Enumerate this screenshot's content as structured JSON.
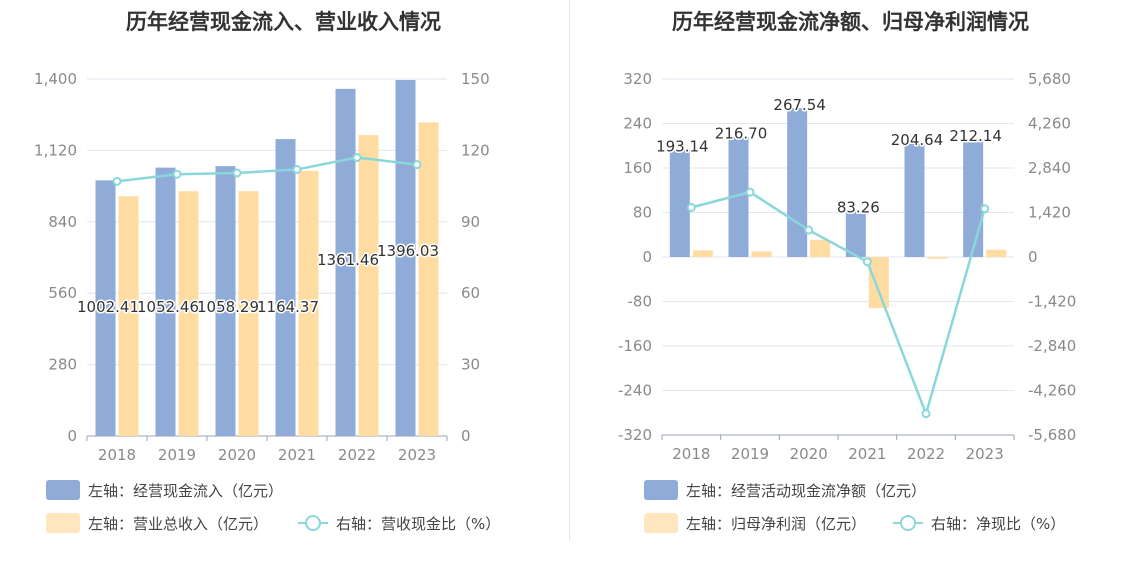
{
  "colors": {
    "blue": "#8facd9",
    "orange": "#ffdca2",
    "line": "#8ad7db",
    "grid": "#e3e6ef",
    "axisText": "#8a8a8a"
  },
  "chart_data": [
    {
      "type": "bar",
      "title": "历年经营现金流入、营业收入情况",
      "categories": [
        "2018",
        "2019",
        "2020",
        "2021",
        "2022",
        "2023"
      ],
      "y_left": {
        "min": 0,
        "max": 1400,
        "ticks": [
          "0",
          "280",
          "560",
          "840",
          "1,120",
          "1,400"
        ]
      },
      "y_right": {
        "min": 0,
        "max": 150,
        "ticks": [
          "0",
          "30",
          "60",
          "90",
          "120",
          "150"
        ]
      },
      "series": [
        {
          "name": "左轴：经营现金流入（亿元）",
          "kind": "bar",
          "axis": "left",
          "values": [
            1002.41,
            1052.46,
            1058.29,
            1164.37,
            1361.46,
            1396.03
          ],
          "labels": [
            "1002.41",
            "1052.46",
            "1058.29",
            "1164.37",
            "1361.46",
            "1396.03"
          ]
        },
        {
          "name": "左轴：营业总收入（亿元）",
          "kind": "bar",
          "axis": "left",
          "values": [
            940,
            960,
            960,
            1040,
            1180,
            1230
          ]
        },
        {
          "name": "右轴：营收现金比（%）",
          "kind": "line",
          "axis": "right",
          "values": [
            107,
            110,
            110.5,
            112,
            117,
            114
          ]
        }
      ]
    },
    {
      "type": "bar",
      "title": "历年经营现金流净额、归母净利润情况",
      "categories": [
        "2018",
        "2019",
        "2020",
        "2021",
        "2022",
        "2023"
      ],
      "y_left": {
        "min": -320,
        "max": 320,
        "ticks": [
          "-320",
          "-240",
          "-160",
          "-80",
          "0",
          "80",
          "160",
          "240",
          "320"
        ]
      },
      "y_right": {
        "min": -5680,
        "max": 5680,
        "ticks": [
          "-5,680",
          "-4,260",
          "-2,840",
          "-1,420",
          "0",
          "1,420",
          "2,840",
          "4,260",
          "5,680"
        ]
      },
      "series": [
        {
          "name": "左轴：经营活动现金流净额（亿元）",
          "kind": "bar",
          "axis": "left",
          "values": [
            193.14,
            216.7,
            267.54,
            83.26,
            204.64,
            212.14
          ],
          "labels": [
            "193.14",
            "216.70",
            "267.54",
            "83.26",
            "204.64",
            "212.14"
          ]
        },
        {
          "name": "左轴：归母净利润（亿元）",
          "kind": "bar",
          "axis": "left",
          "values": [
            12,
            10,
            31,
            -92,
            -3,
            13
          ]
        },
        {
          "name": "右轴：净现比（%）",
          "kind": "line",
          "axis": "right",
          "values": [
            1580,
            2070,
            860,
            -150,
            -5000,
            1540
          ]
        }
      ]
    }
  ]
}
